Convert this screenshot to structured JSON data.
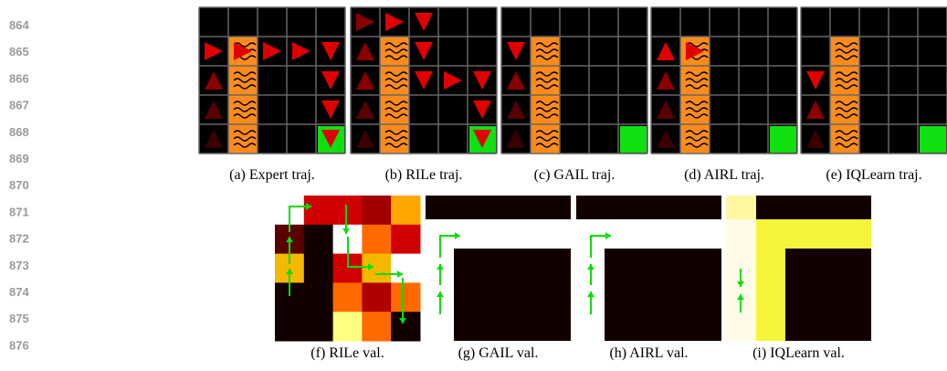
{
  "line_numbers": [
    "864",
    "865",
    "866",
    "867",
    "868",
    "869",
    "870",
    "871",
    "872",
    "873",
    "874",
    "875",
    "876"
  ],
  "top_row": {
    "captions": [
      "(a) Expert traj.",
      "(b) RILe traj.",
      "(c) GAIL traj.",
      "(d) AIRL traj.",
      "(e) IQLearn traj."
    ]
  },
  "bottom_row": {
    "captions": [
      "(f) RILe val.",
      "(g) GAIL val.",
      "(h) AIRL val.",
      "(i) IQLearn val."
    ]
  }
}
